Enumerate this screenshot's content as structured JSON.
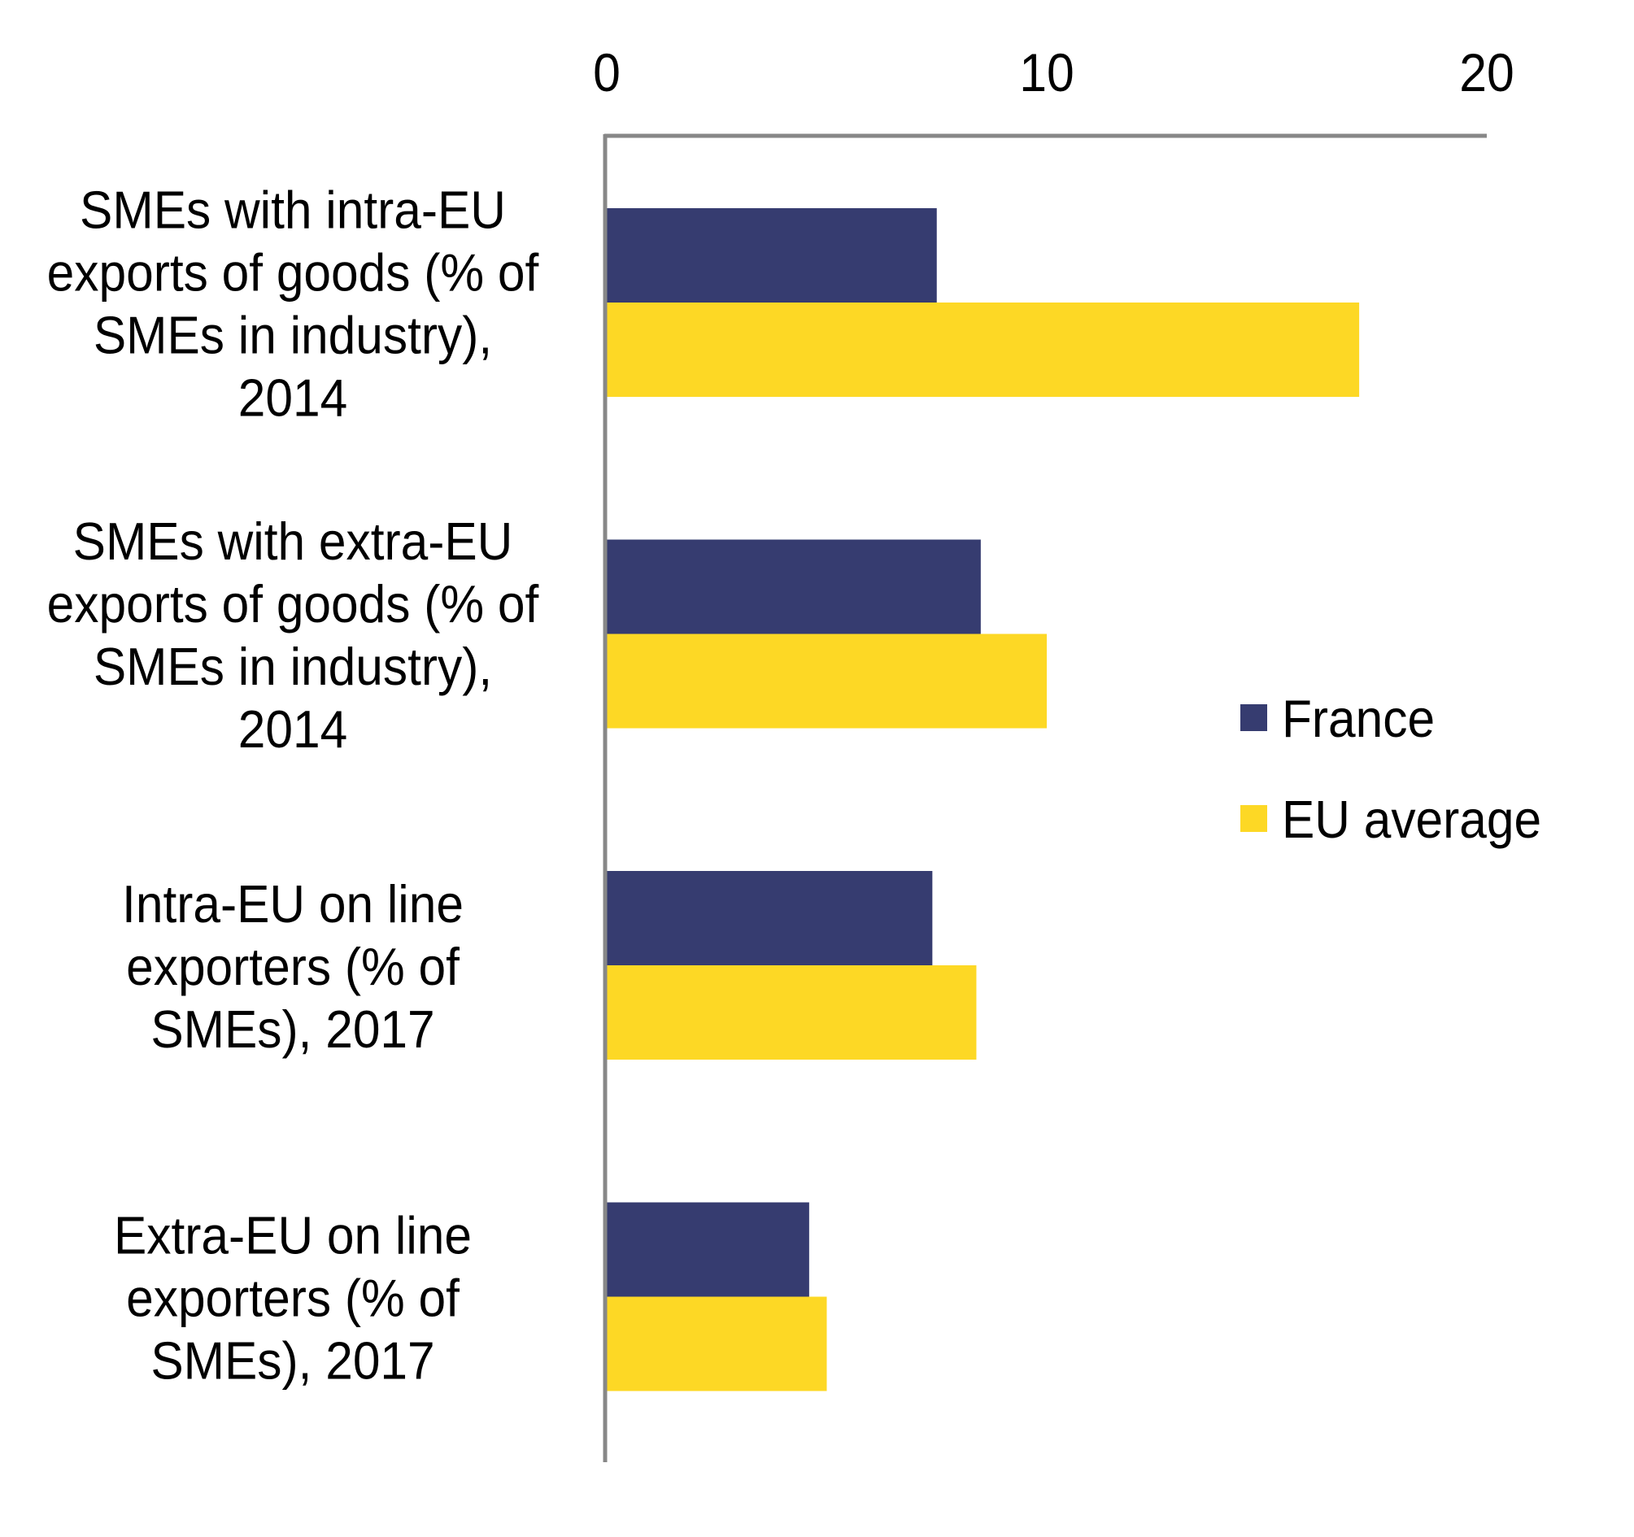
{
  "chart_data": {
    "type": "bar",
    "orientation": "horizontal",
    "title": "",
    "xlabel": "",
    "ylabel": "",
    "xlim": [
      0,
      20
    ],
    "x_ticks": [
      0,
      10,
      20
    ],
    "x_tick_labels": [
      "0",
      "10",
      "20"
    ],
    "x_axis_position": "top",
    "grid": false,
    "categories": [
      [
        "SMEs with intra-EU",
        "exports of goods (% of",
        "SMEs in industry),",
        "2014"
      ],
      [
        "SMEs with extra-EU",
        "exports of goods (% of",
        "SMEs in industry),",
        "2014"
      ],
      [
        "Intra-EU on line",
        "exporters (% of",
        "SMEs), 2017"
      ],
      [
        "Extra-EU on line",
        "exporters (% of",
        "SMEs), 2017"
      ]
    ],
    "series": [
      {
        "name": "France",
        "color": "#363C70",
        "values": [
          7.5,
          8.5,
          7.4,
          4.6
        ]
      },
      {
        "name": "EU average",
        "color": "#FDD825",
        "values": [
          17.1,
          10.0,
          8.4,
          5.0
        ]
      }
    ],
    "legend": {
      "placement": "right",
      "entries": [
        "France",
        "EU average"
      ]
    },
    "axis_color": "#878787"
  }
}
